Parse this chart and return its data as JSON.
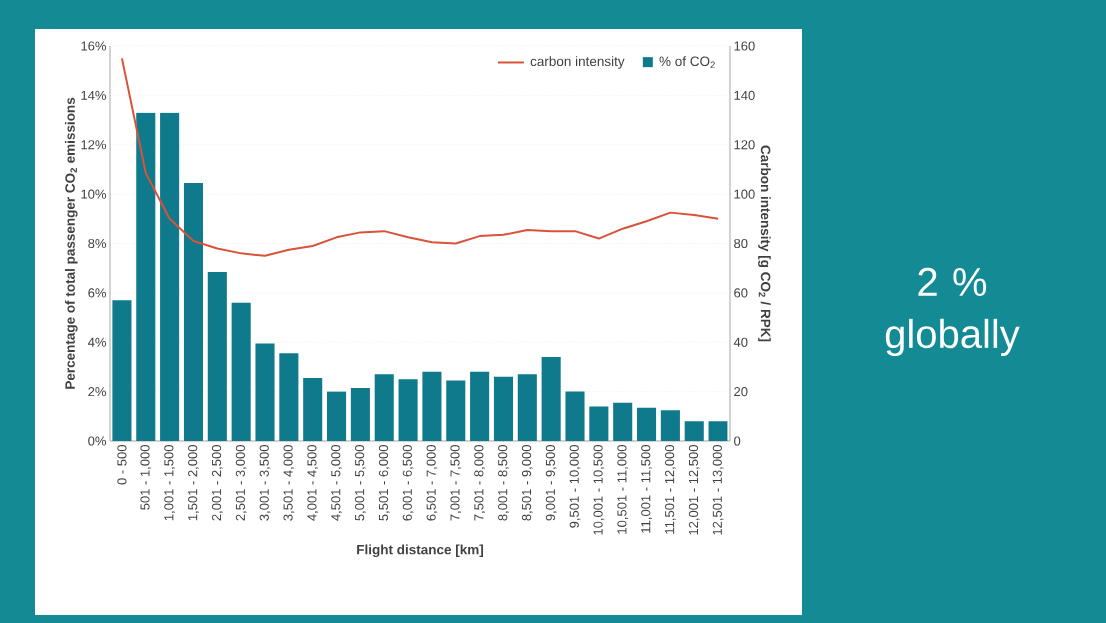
{
  "chart_data": {
    "type": "bar",
    "xlabel": "Flight distance [km]",
    "ylabel": "Percentage of total passenger CO$_{2}$ emissions",
    "y2label": "Carbon intensity [g CO$_{2}$ / RPK]",
    "categories": [
      "0 - 500",
      "501 - 1,000",
      "1,001 - 1,500",
      "1,501 - 2,000",
      "2,001 - 2,500",
      "2,501 - 3,000",
      "3,001 - 3,500",
      "3,501 - 4,000",
      "4,001 - 4,500",
      "4,501 - 5,000",
      "5,001 - 5,500",
      "5,501 - 6,000",
      "6,001 - 6,500",
      "6,501 - 7,000",
      "7,001 - 7,500",
      "7,501 - 8,000",
      "8,001 - 8,500",
      "8,501 - 9,000",
      "9,001 - 9,500",
      "9,501 - 10,000",
      "10,001 - 10,500",
      "10,501 - 11,000",
      "11,001 - 11,500",
      "11,501 - 12,000",
      "12,001 - 12,500",
      "12,501 - 13,000"
    ],
    "series": [
      {
        "name": "carbon intensity",
        "type": "line",
        "axis": "y2",
        "color": "#d9533a",
        "values": [
          155,
          108.5,
          90,
          81,
          78,
          76,
          75,
          77.5,
          79,
          82.5,
          84.5,
          85,
          82.5,
          80.5,
          80,
          83,
          83.5,
          85.5,
          85,
          85,
          82,
          86,
          89,
          92.5,
          91.5,
          90
        ]
      },
      {
        "name": "% of CO$_{2}$",
        "color": "#0e7a8c",
        "values": [
          5.7,
          13.3,
          13.3,
          10.45,
          6.85,
          5.6,
          3.95,
          3.55,
          2.55,
          2.0,
          2.15,
          2.7,
          2.5,
          2.8,
          2.45,
          2.8,
          2.6,
          2.7,
          3.4,
          2.0,
          1.4,
          1.55,
          1.35,
          1.25,
          0.8,
          0.8
        ]
      }
    ],
    "ylim": [
      0,
      16
    ],
    "yticks": [
      {
        "value": 0,
        "label": "0%"
      },
      {
        "value": 2,
        "label": "2%"
      },
      {
        "value": 4,
        "label": "4%"
      },
      {
        "value": 6,
        "label": "6%"
      },
      {
        "value": 8,
        "label": "8%"
      },
      {
        "value": 10,
        "label": "10%"
      },
      {
        "value": 12,
        "label": "12%"
      },
      {
        "value": 14,
        "label": "14%"
      },
      {
        "value": 16,
        "label": "16%"
      }
    ],
    "y2lim": [
      0,
      160
    ],
    "y2ticks": [
      0,
      20,
      40,
      60,
      80,
      100,
      120,
      140,
      160
    ],
    "grid": "y",
    "legend": "top right",
    "annotations": [
      "2 % globally"
    ]
  }
}
